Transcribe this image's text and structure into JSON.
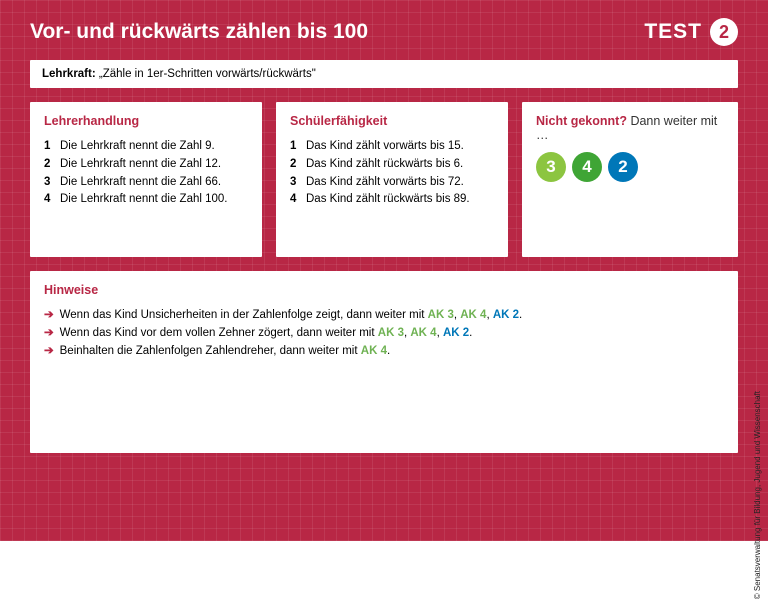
{
  "colors": {
    "page_bg": "#b82745",
    "grid_line": "rgba(255,255,255,0.08)",
    "white": "#ffffff",
    "text": "#222222",
    "ak_green": "#6fb253",
    "ak_blue": "#0077b8",
    "badge_green_light": "#8cc540",
    "badge_green": "#3fa535",
    "badge_blue": "#0077b8"
  },
  "header": {
    "title": "Vor- und rückwärts zählen bis 100",
    "test_label": "TEST",
    "test_number": "2"
  },
  "instruction": {
    "label": "Lehrkraft:",
    "text": "„Zähle in 1er-Schritten vorwärts/rückwärts\""
  },
  "lehrerhandlung": {
    "heading": "Lehrerhandlung",
    "items": [
      "Die Lehrkraft nennt die Zahl 9.",
      "Die Lehrkraft nennt die Zahl 12.",
      "Die Lehrkraft nennt die Zahl 66.",
      "Die Lehrkraft nennt die Zahl 100."
    ]
  },
  "schuelerfaehigkeit": {
    "heading": "Schülerfähigkeit",
    "items": [
      "Das Kind zählt vorwärts bis 15.",
      "Das Kind zählt rückwärts bis 6.",
      "Das Kind zählt vorwärts bis 72.",
      "Das Kind zählt rückwärts bis 89."
    ]
  },
  "nicht_gekonnt": {
    "heading_strong": "Nicht gekonnt?",
    "heading_rest": " Dann weiter mit …",
    "badges": [
      {
        "label": "3",
        "color": "#8cc540"
      },
      {
        "label": "4",
        "color": "#3fa535"
      },
      {
        "label": "2",
        "color": "#0077b8"
      }
    ]
  },
  "hinweise": {
    "heading": "Hinweise",
    "items": [
      {
        "pre": "Wenn das Kind Unsicherheiten in der Zahlenfolge zeigt, dann weiter mit ",
        "aks": [
          {
            "label": "AK 3",
            "color": "#6fb253"
          },
          {
            "label": "AK 4",
            "color": "#6fb253"
          },
          {
            "label": "AK 2",
            "color": "#0077b8"
          }
        ]
      },
      {
        "pre": "Wenn das Kind vor dem vollen Zehner zögert, dann weiter mit ",
        "aks": [
          {
            "label": "AK 3",
            "color": "#6fb253"
          },
          {
            "label": "AK 4",
            "color": "#6fb253"
          },
          {
            "label": "AK 2",
            "color": "#0077b8"
          }
        ]
      },
      {
        "pre": "Beinhalten die Zahlenfolgen Zahlendreher, dann weiter mit ",
        "aks": [
          {
            "label": "AK 4",
            "color": "#6fb253"
          }
        ]
      }
    ]
  },
  "credit": "© Senatsverwaltung für Bildung, Jugend und Wissenschaft"
}
